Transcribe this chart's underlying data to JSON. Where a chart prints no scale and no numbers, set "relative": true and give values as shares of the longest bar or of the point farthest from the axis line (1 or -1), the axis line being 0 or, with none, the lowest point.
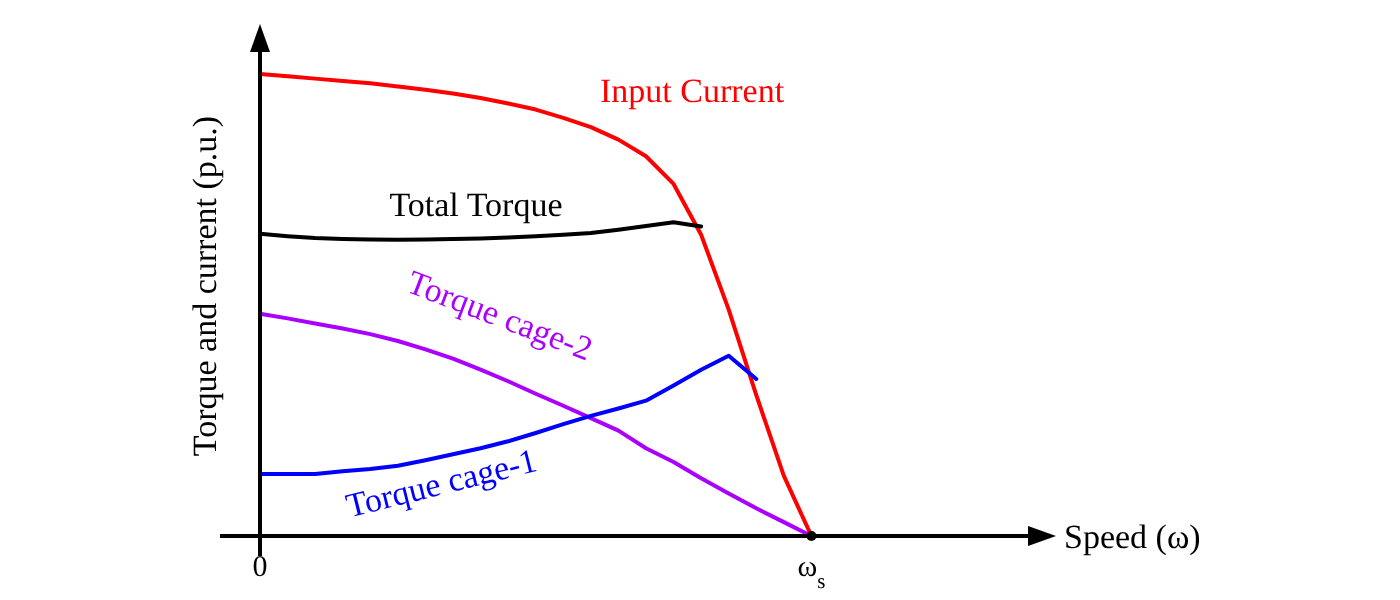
{
  "chart_data": {
    "type": "line",
    "relative": true,
    "xlabel": "Speed (ω)",
    "ylabel": "Torque and current (p.u.)",
    "categories": [
      "0",
      null,
      null,
      null,
      null,
      null,
      null,
      null,
      null,
      null,
      null,
      null,
      null,
      null,
      null,
      null,
      null,
      null,
      null,
      null,
      "ω$_{s}$",
      null,
      null,
      null,
      null,
      null,
      null,
      null,
      null
    ],
    "series": [
      {
        "name": "Input Current",
        "color": "#ff0000",
        "values": [
          1.0,
          0.995,
          0.99,
          0.985,
          0.98,
          0.973,
          0.966,
          0.958,
          0.948,
          0.936,
          0.923,
          0.905,
          0.885,
          0.858,
          0.822,
          0.762,
          0.652,
          0.49,
          0.305,
          0.13,
          0,
          null,
          null,
          null,
          null,
          null,
          null,
          null,
          null
        ]
      },
      {
        "name": "Total Torque",
        "color": "#000000",
        "values": [
          0.654,
          0.649,
          0.645,
          0.643,
          0.642,
          0.641,
          0.642,
          0.643,
          0.644,
          0.646,
          0.649,
          0.652,
          0.656,
          0.663,
          0.671,
          0.679,
          0.67,
          null,
          null,
          null,
          null,
          null,
          null,
          null,
          null,
          null,
          null,
          null,
          null
        ]
      },
      {
        "name": "Torque cage-2",
        "color": "#aa00ff",
        "values": [
          0.481,
          0.471,
          0.46,
          0.449,
          0.437,
          0.422,
          0.404,
          0.384,
          0.36,
          0.335,
          0.308,
          0.282,
          0.255,
          0.228,
          0.19,
          0.16,
          0.125,
          0.092,
          0.06,
          0.03,
          0,
          null,
          null,
          null,
          null,
          null,
          null,
          null,
          null
        ]
      },
      {
        "name": "Torque cage-1",
        "color": "#0000ff",
        "values": [
          0.134,
          0.134,
          0.134,
          0.14,
          0.145,
          0.152,
          0.164,
          0.177,
          0.19,
          0.205,
          0.223,
          0.242,
          0.26,
          0.276,
          0.293,
          0.326,
          0.36,
          0.39,
          0.34,
          null,
          null,
          null,
          null,
          null,
          null,
          null,
          null,
          null,
          null
        ]
      }
    ]
  }
}
